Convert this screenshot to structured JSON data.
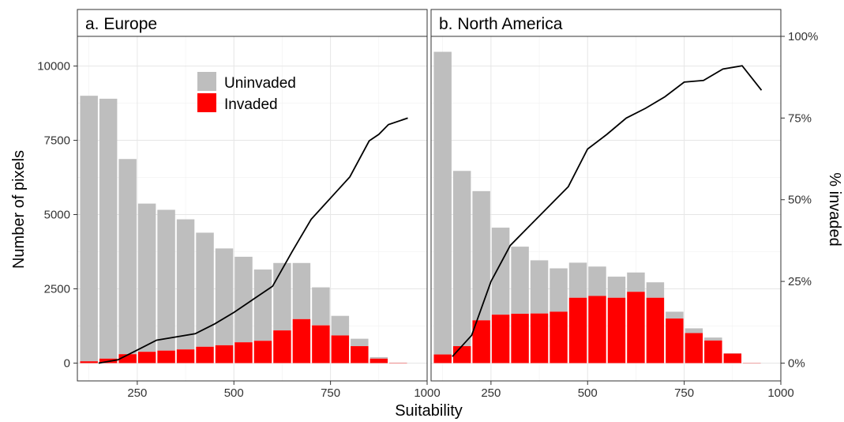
{
  "chart_data": {
    "type": "bar",
    "stacked": true,
    "xlabel": "Suitability",
    "ylabel": "Number of pixels",
    "y2label": "% invaded",
    "xlim": [
      95,
      1000
    ],
    "ylim": [
      -600,
      11000
    ],
    "y2lim": [
      -0.0545,
      1.0
    ],
    "x_ticks": [
      250,
      500,
      750,
      1000
    ],
    "y_ticks": [
      0,
      2500,
      5000,
      7500,
      10000
    ],
    "y2_ticks": [
      0,
      0.25,
      0.5,
      0.75,
      1.0
    ],
    "y2_tick_labels": [
      "0%",
      "25%",
      "50%",
      "75%",
      "100%"
    ],
    "grid": true,
    "legend": {
      "position": "top-center",
      "entries": [
        {
          "label": "Uninvaded",
          "color": "#bebebe"
        },
        {
          "label": "Invaded",
          "color": "#ff0000"
        }
      ]
    },
    "colors": {
      "uninvaded": "#bebebe",
      "invaded": "#ff0000",
      "line": "#000000"
    },
    "panels": [
      {
        "title": "a. Europe",
        "bins": [
          {
            "x": 125,
            "total": 9000,
            "invaded": 60
          },
          {
            "x": 175,
            "total": 8900,
            "invaded": 150
          },
          {
            "x": 225,
            "total": 6870,
            "invaded": 300
          },
          {
            "x": 275,
            "total": 5370,
            "invaded": 380
          },
          {
            "x": 325,
            "total": 5160,
            "invaded": 420
          },
          {
            "x": 375,
            "total": 4840,
            "invaded": 460
          },
          {
            "x": 425,
            "total": 4390,
            "invaded": 550
          },
          {
            "x": 475,
            "total": 3860,
            "invaded": 600
          },
          {
            "x": 525,
            "total": 3580,
            "invaded": 700
          },
          {
            "x": 575,
            "total": 3150,
            "invaded": 750
          },
          {
            "x": 625,
            "total": 3370,
            "invaded": 1100
          },
          {
            "x": 675,
            "total": 3370,
            "invaded": 1480
          },
          {
            "x": 725,
            "total": 2550,
            "invaded": 1270
          },
          {
            "x": 775,
            "total": 1590,
            "invaded": 930
          },
          {
            "x": 825,
            "total": 820,
            "invaded": 570
          },
          {
            "x": 875,
            "total": 200,
            "invaded": 150
          },
          {
            "x": 925,
            "total": 15,
            "invaded": 10
          }
        ],
        "line": {
          "x": [
            150,
            200,
            250,
            300,
            350,
            400,
            450,
            500,
            550,
            600,
            650,
            700,
            750,
            800,
            850,
            875,
            900,
            950
          ],
          "y": [
            0.0,
            0.01,
            0.04,
            0.07,
            0.08,
            0.09,
            0.12,
            0.155,
            0.195,
            0.235,
            0.34,
            0.44,
            0.505,
            0.57,
            0.68,
            0.7,
            0.73,
            0.75
          ]
        }
      },
      {
        "title": "b. North America",
        "bins": [
          {
            "x": 125,
            "total": 10480,
            "invaded": 290
          },
          {
            "x": 175,
            "total": 6470,
            "invaded": 570
          },
          {
            "x": 225,
            "total": 5790,
            "invaded": 1440
          },
          {
            "x": 275,
            "total": 4560,
            "invaded": 1630
          },
          {
            "x": 325,
            "total": 3920,
            "invaded": 1660
          },
          {
            "x": 375,
            "total": 3460,
            "invaded": 1670
          },
          {
            "x": 425,
            "total": 3190,
            "invaded": 1730
          },
          {
            "x": 475,
            "total": 3380,
            "invaded": 2200
          },
          {
            "x": 525,
            "total": 3250,
            "invaded": 2260
          },
          {
            "x": 575,
            "total": 2910,
            "invaded": 2200
          },
          {
            "x": 625,
            "total": 3050,
            "invaded": 2400
          },
          {
            "x": 675,
            "total": 2720,
            "invaded": 2200
          },
          {
            "x": 725,
            "total": 1730,
            "invaded": 1500
          },
          {
            "x": 775,
            "total": 1170,
            "invaded": 1010
          },
          {
            "x": 825,
            "total": 860,
            "invaded": 760
          },
          {
            "x": 875,
            "total": 330,
            "invaded": 320
          },
          {
            "x": 925,
            "total": 10,
            "invaded": 8
          }
        ],
        "line": {
          "x": [
            150,
            200,
            250,
            300,
            350,
            400,
            450,
            500,
            550,
            600,
            650,
            700,
            750,
            800,
            850,
            900,
            950
          ],
          "y": [
            0.02,
            0.085,
            0.25,
            0.36,
            0.42,
            0.48,
            0.54,
            0.655,
            0.7,
            0.75,
            0.78,
            0.815,
            0.86,
            0.865,
            0.9,
            0.91,
            0.835
          ]
        }
      }
    ]
  }
}
